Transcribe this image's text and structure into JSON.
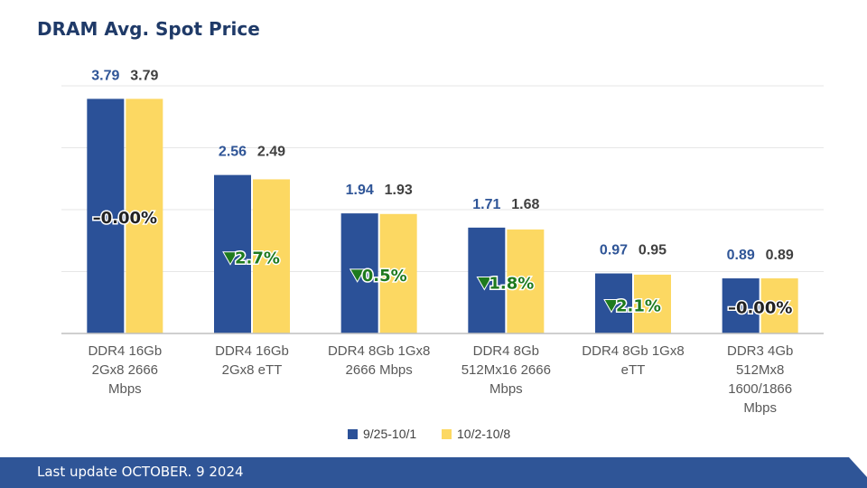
{
  "page": {
    "title": "DRAM Avg. Spot Price",
    "footer": "Last update OCTOBER. 9  2024"
  },
  "colors": {
    "series1": "#2b5198",
    "series2": "#fcd862",
    "title": "#1f3a68",
    "label1": "#2f5597",
    "label2": "#404040",
    "footer": "#2f5597",
    "down": "#1e7a1e"
  },
  "chart_data": {
    "type": "bar",
    "title": "",
    "categories": [
      [
        "DDR4 16Gb",
        "2Gx8 2666",
        "Mbps"
      ],
      [
        "DDR4 16Gb",
        "2Gx8 eTT"
      ],
      [
        "DDR4 8Gb 1Gx8",
        "2666 Mbps"
      ],
      [
        "DDR4 8Gb",
        "512Mx16 2666",
        "Mbps"
      ],
      [
        "DDR4 8Gb 1Gx8",
        "eTT"
      ],
      [
        "DDR3 4Gb",
        "512Mx8",
        "1600/1866",
        "Mbps"
      ]
    ],
    "series": [
      {
        "name": "9/25-10/1",
        "values": [
          3.79,
          2.56,
          1.94,
          1.71,
          0.97,
          0.89
        ]
      },
      {
        "name": "10/2-10/8",
        "values": [
          3.79,
          2.49,
          1.93,
          1.68,
          0.95,
          0.89
        ]
      }
    ],
    "value_labels": [
      [
        "3.79",
        "2.56",
        "1.94",
        "1.71",
        "0.97",
        "0.89"
      ],
      [
        "3.79",
        "2.49",
        "1.93",
        "1.68",
        "0.95",
        "0.89"
      ]
    ],
    "changes": [
      {
        "direction": "flat",
        "text": "0.00%"
      },
      {
        "direction": "down",
        "text": "2.7%"
      },
      {
        "direction": "down",
        "text": "0.5%"
      },
      {
        "direction": "down",
        "text": "1.8%"
      },
      {
        "direction": "down",
        "text": "2.1%"
      },
      {
        "direction": "flat",
        "text": "0.00%"
      }
    ],
    "ylim": [
      0,
      4
    ],
    "grid": true,
    "legend_position": "bottom"
  }
}
